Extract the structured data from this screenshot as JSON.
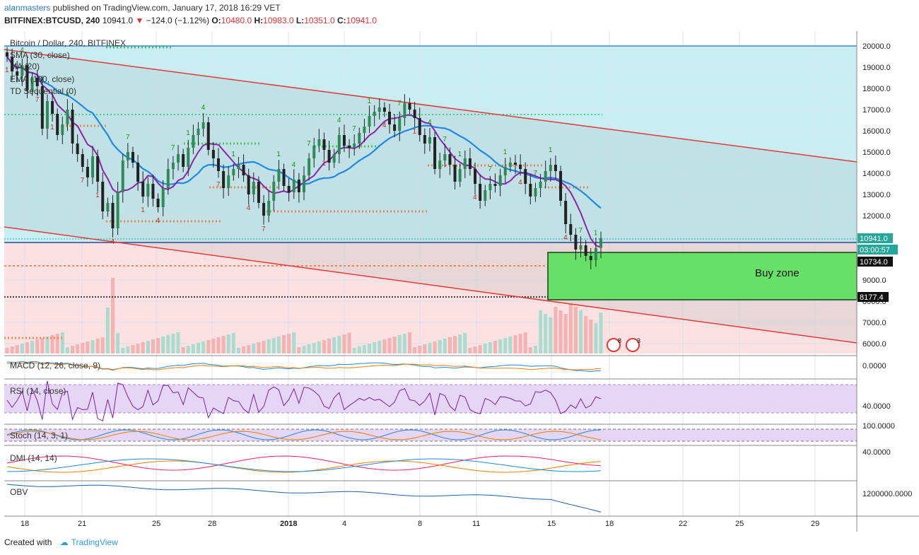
{
  "header": {
    "user": "alanmasters",
    "published": "published on TradingView.com, January 17, 2018 16:29 VET",
    "symbol": "BITFINEX:BTCUSD, 240",
    "price": "10941.0",
    "change": "−124.0 (−1.12%)",
    "o_label": "O:",
    "o": "10480.0",
    "h_label": "H:",
    "h": "10983.0",
    "l_label": "L:",
    "l": "10351.0",
    "c_label": "C:",
    "c": "10941.0"
  },
  "legend": {
    "title": "Bitcoin / Dollar, 240, BITFINEX",
    "sma": "SMA (30, close)",
    "ma": "MA (20)",
    "ema": "EMA (100, close)",
    "td": "TD Sequential (0)"
  },
  "annotations": {
    "buy_zone": "Buy zone",
    "price_tag": "10941.0",
    "timer_tag": "03:00:57",
    "level_1": "10734.0",
    "level_2": "8177.4"
  },
  "panes": {
    "macd": "MACD (12, 26, close, 9)",
    "macd_val": "0.0000",
    "rsi": "RSI (14, close)",
    "rsi_val": "40.0000",
    "stoch": "Stoch (14, 3, 1)",
    "stoch_val": "100.0000",
    "dmi": "DMI (14, 14)",
    "dmi_val": "40.0000",
    "obv": "OBV",
    "obv_val": "1200000.0000"
  },
  "footer": {
    "created": "Created with",
    "brand": "TradingView"
  },
  "colors": {
    "up": "#26a69a",
    "down": "#ef5350",
    "sma": "#1e88e5",
    "ma": "#8e24aa",
    "channel": "#e53935",
    "buy_zone": "#66e066",
    "green_td": "#1b8f1b",
    "red_td": "#c62828"
  },
  "chart_data": {
    "type": "candlestick",
    "title": "Bitcoin / Dollar, 240, BITFINEX",
    "y_range": [
      5500,
      20500
    ],
    "y_ticks": [
      "20000.0",
      "19000.0",
      "18000.0",
      "17000.0",
      "16000.0",
      "15000.0",
      "14000.0",
      "13000.0",
      "12000.0",
      "9000.0",
      "8000.0",
      "7000.0",
      "6000.0"
    ],
    "x_ticks": [
      "18",
      "21",
      "25",
      "28",
      "2018",
      "4",
      "8",
      "11",
      "15",
      "18",
      "22",
      "25",
      "29"
    ],
    "levels": [
      {
        "name": "resistance",
        "value": 20000
      },
      {
        "name": "green-dotted",
        "value": 16700
      },
      {
        "name": "current",
        "value": 10941
      },
      {
        "name": "orange-dotted",
        "value": 10734
      },
      {
        "name": "black-dotted",
        "value": 8177.4
      }
    ],
    "buy_zone": [
      8177.4,
      10600
    ],
    "channel_upper": [
      [
        0,
        19800
      ],
      [
        1,
        14500
      ]
    ],
    "channel_lower": [
      [
        0,
        11700
      ],
      [
        1,
        5950
      ]
    ],
    "close": [
      19500,
      18800,
      18600,
      19100,
      17900,
      18500,
      18100,
      16100,
      17400,
      16800,
      15800,
      16300,
      17000,
      15400,
      14900,
      14300,
      13800,
      14800,
      13600,
      12200,
      12600,
      11400,
      13100,
      14600,
      15000,
      14500,
      13600,
      12900,
      13500,
      12800,
      12400,
      13300,
      14200,
      14500,
      14900,
      14300,
      15200,
      15800,
      16100,
      16400,
      15100,
      14700,
      14100,
      13300,
      13900,
      14200,
      14400,
      13900,
      13000,
      13600,
      12600,
      12000,
      12700,
      13600,
      14200,
      13400,
      13100,
      13700,
      13100,
      13900,
      14700,
      15300,
      15600,
      15100,
      14500,
      14900,
      15800,
      15300,
      15200,
      15400,
      15900,
      16200,
      16700,
      16900,
      17100,
      16900,
      16300,
      16000,
      16600,
      17300,
      17000,
      16600,
      15800,
      15400,
      15700,
      14200,
      14600,
      14900,
      14400,
      13600,
      14200,
      14700,
      14200,
      13500,
      12700,
      13200,
      13500,
      13400,
      13900,
      14300,
      14500,
      14400,
      14200,
      13500,
      12900,
      13300,
      13600,
      14100,
      14400,
      14100,
      12700,
      11600,
      11100,
      10400,
      10600,
      10100,
      9900,
      10480,
      10941
    ]
  }
}
